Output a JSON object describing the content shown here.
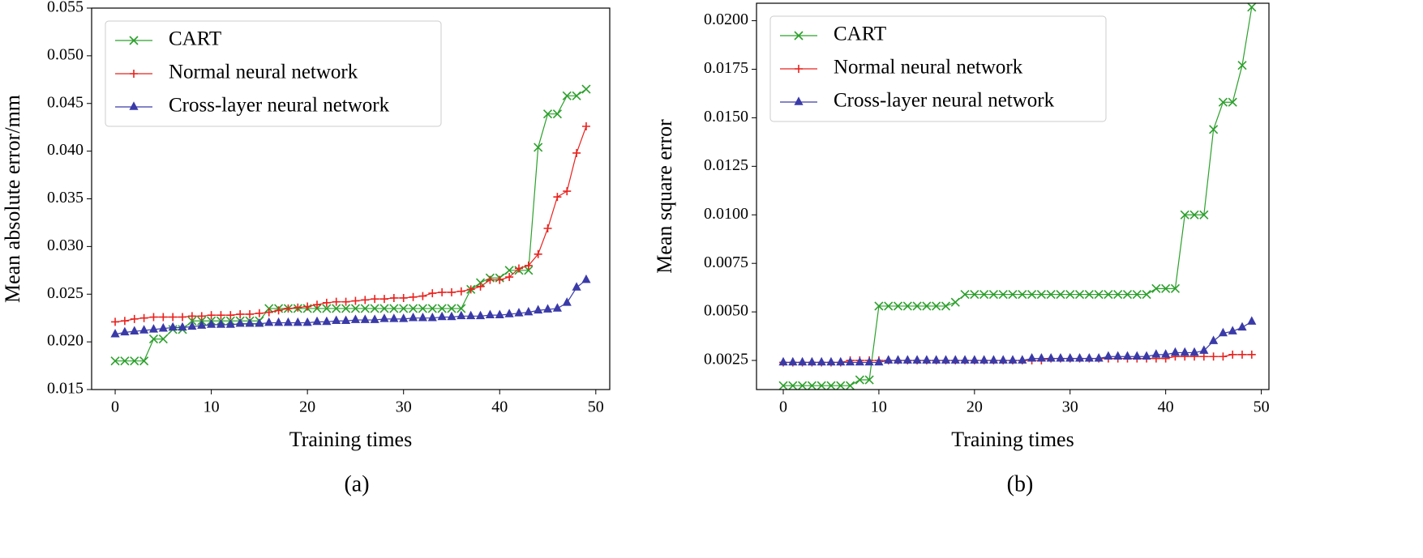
{
  "chart_data": [
    {
      "type": "line",
      "caption": "(a)",
      "x_label": "Training times",
      "y_label": "Mean absolute error/mm",
      "x": [
        0,
        1,
        2,
        3,
        4,
        5,
        6,
        7,
        8,
        9,
        10,
        11,
        12,
        13,
        14,
        15,
        16,
        17,
        18,
        19,
        20,
        21,
        22,
        23,
        24,
        25,
        26,
        27,
        28,
        29,
        30,
        31,
        32,
        33,
        34,
        35,
        36,
        37,
        38,
        39,
        40,
        41,
        42,
        43,
        44,
        45,
        46,
        47,
        48,
        49
      ],
      "xlim": [
        -2.45,
        51.45
      ],
      "xticks": [
        0,
        10,
        20,
        30,
        40,
        50
      ],
      "ylim": [
        0.015,
        0.055
      ],
      "yticks": [
        {
          "value": 0.015,
          "label": "0.015"
        },
        {
          "value": 0.02,
          "label": "0.020"
        },
        {
          "value": 0.025,
          "label": "0.025"
        },
        {
          "value": 0.03,
          "label": "0.030"
        },
        {
          "value": 0.035,
          "label": "0.035"
        },
        {
          "value": 0.04,
          "label": "0.040"
        },
        {
          "value": 0.045,
          "label": "0.045"
        },
        {
          "value": 0.05,
          "label": "0.050"
        },
        {
          "value": 0.055,
          "label": "0.055"
        }
      ],
      "legend": "upper left",
      "series": [
        {
          "name": "CART",
          "color": "#2ca02c",
          "marker": "x",
          "values": [
            0.018,
            0.018,
            0.018,
            0.018,
            0.0203,
            0.0203,
            0.0213,
            0.0213,
            0.0222,
            0.0222,
            0.0222,
            0.0222,
            0.0222,
            0.0222,
            0.0222,
            0.0222,
            0.0235,
            0.0235,
            0.0235,
            0.0235,
            0.0235,
            0.0235,
            0.0235,
            0.0235,
            0.0235,
            0.0235,
            0.0235,
            0.0235,
            0.0235,
            0.0235,
            0.0235,
            0.0235,
            0.0235,
            0.0235,
            0.0235,
            0.0235,
            0.0235,
            0.0255,
            0.0262,
            0.0267,
            0.0267,
            0.0275,
            0.0275,
            0.0275,
            0.0404,
            0.0439,
            0.0439,
            0.0458,
            0.0458,
            0.0465
          ]
        },
        {
          "name": "Normal neural network",
          "color": "#e8231f",
          "marker": "+",
          "values": [
            0.0221,
            0.0222,
            0.0224,
            0.0225,
            0.0226,
            0.0226,
            0.0226,
            0.0226,
            0.0227,
            0.0227,
            0.0228,
            0.0228,
            0.0228,
            0.0229,
            0.0229,
            0.023,
            0.0231,
            0.0233,
            0.0235,
            0.0236,
            0.0237,
            0.0239,
            0.0241,
            0.0242,
            0.0242,
            0.0243,
            0.0244,
            0.0245,
            0.0245,
            0.0246,
            0.0246,
            0.0247,
            0.0248,
            0.0251,
            0.0252,
            0.0252,
            0.0253,
            0.0255,
            0.0258,
            0.0265,
            0.0265,
            0.0268,
            0.0277,
            0.028,
            0.0292,
            0.0319,
            0.0352,
            0.0358,
            0.0398,
            0.0426
          ]
        },
        {
          "name": "Cross-layer neural network",
          "color": "#3a3aa8",
          "marker": "*",
          "values": [
            0.0208,
            0.021,
            0.0211,
            0.0212,
            0.0213,
            0.0214,
            0.0215,
            0.0215,
            0.0216,
            0.0217,
            0.0218,
            0.0218,
            0.0218,
            0.0219,
            0.0219,
            0.0219,
            0.022,
            0.022,
            0.022,
            0.022,
            0.022,
            0.0221,
            0.0221,
            0.0222,
            0.0222,
            0.0223,
            0.0223,
            0.0223,
            0.0224,
            0.0224,
            0.0224,
            0.0225,
            0.0225,
            0.0225,
            0.0226,
            0.0226,
            0.0227,
            0.0227,
            0.0227,
            0.0228,
            0.0228,
            0.0229,
            0.023,
            0.0231,
            0.0233,
            0.0234,
            0.0235,
            0.0241,
            0.0257,
            0.0265
          ]
        }
      ]
    },
    {
      "type": "line",
      "caption": "(b)",
      "x_label": "Training times",
      "y_label": "Mean square error",
      "x": [
        0,
        1,
        2,
        3,
        4,
        5,
        6,
        7,
        8,
        9,
        10,
        11,
        12,
        13,
        14,
        15,
        16,
        17,
        18,
        19,
        20,
        21,
        22,
        23,
        24,
        25,
        26,
        27,
        28,
        29,
        30,
        31,
        32,
        33,
        34,
        35,
        36,
        37,
        38,
        39,
        40,
        41,
        42,
        43,
        44,
        45,
        46,
        47,
        48,
        49
      ],
      "xlim": [
        -2.8,
        50.8
      ],
      "xticks": [
        0,
        10,
        20,
        30,
        40,
        50
      ],
      "ylim": [
        0.001,
        0.0209
      ],
      "yticks": [
        {
          "value": 0.0025,
          "label": "0.0025"
        },
        {
          "value": 0.005,
          "label": "0.0050"
        },
        {
          "value": 0.0075,
          "label": "0.0075"
        },
        {
          "value": 0.01,
          "label": "0.0100"
        },
        {
          "value": 0.0125,
          "label": "0.0125"
        },
        {
          "value": 0.015,
          "label": "0.0150"
        },
        {
          "value": 0.0175,
          "label": "0.0175"
        },
        {
          "value": 0.02,
          "label": "0.0200"
        }
      ],
      "legend": "upper left",
      "series": [
        {
          "name": "CART",
          "color": "#2ca02c",
          "marker": "x",
          "values": [
            0.0012,
            0.0012,
            0.0012,
            0.0012,
            0.0012,
            0.0012,
            0.0012,
            0.0012,
            0.0015,
            0.0015,
            0.0053,
            0.0053,
            0.0053,
            0.0053,
            0.0053,
            0.0053,
            0.0053,
            0.0053,
            0.0055,
            0.0059,
            0.0059,
            0.0059,
            0.0059,
            0.0059,
            0.0059,
            0.0059,
            0.0059,
            0.0059,
            0.0059,
            0.0059,
            0.0059,
            0.0059,
            0.0059,
            0.0059,
            0.0059,
            0.0059,
            0.0059,
            0.0059,
            0.0059,
            0.0062,
            0.0062,
            0.0062,
            0.01,
            0.01,
            0.01,
            0.0144,
            0.0158,
            0.0158,
            0.0177,
            0.0207
          ]
        },
        {
          "name": "Normal neural network",
          "color": "#e8231f",
          "marker": "+",
          "values": [
            0.0024,
            0.0024,
            0.0024,
            0.0024,
            0.0024,
            0.0024,
            0.0024,
            0.0025,
            0.0025,
            0.0025,
            0.0025,
            0.0025,
            0.0025,
            0.0025,
            0.0025,
            0.0025,
            0.0025,
            0.0025,
            0.0025,
            0.0025,
            0.0025,
            0.0025,
            0.0025,
            0.0025,
            0.0025,
            0.0025,
            0.0025,
            0.0025,
            0.0026,
            0.0026,
            0.0026,
            0.0026,
            0.0026,
            0.0026,
            0.0026,
            0.0026,
            0.0026,
            0.0026,
            0.0026,
            0.0026,
            0.0026,
            0.0027,
            0.0027,
            0.0027,
            0.0027,
            0.0027,
            0.0027,
            0.0028,
            0.0028,
            0.0028
          ]
        },
        {
          "name": "Cross-layer neural network",
          "color": "#3a3aa8",
          "marker": "*",
          "values": [
            0.0024,
            0.0024,
            0.0024,
            0.0024,
            0.0024,
            0.0024,
            0.0024,
            0.0024,
            0.0024,
            0.0024,
            0.0024,
            0.0025,
            0.0025,
            0.0025,
            0.0025,
            0.0025,
            0.0025,
            0.0025,
            0.0025,
            0.0025,
            0.0025,
            0.0025,
            0.0025,
            0.0025,
            0.0025,
            0.0025,
            0.0026,
            0.0026,
            0.0026,
            0.0026,
            0.0026,
            0.0026,
            0.0026,
            0.0026,
            0.0027,
            0.0027,
            0.0027,
            0.0027,
            0.0027,
            0.0028,
            0.0028,
            0.0029,
            0.0029,
            0.0029,
            0.003,
            0.0035,
            0.0039,
            0.004,
            0.0042,
            0.0045
          ]
        }
      ]
    }
  ]
}
